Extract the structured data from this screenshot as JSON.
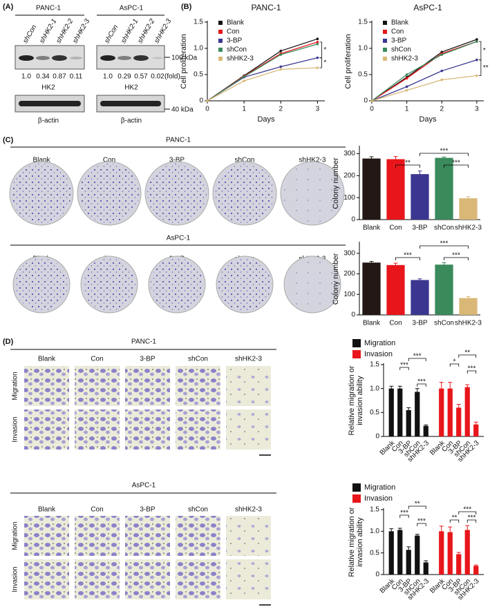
{
  "panel_labels": [
    "(A)",
    "(B)",
    "(C)",
    "(D)"
  ],
  "blots": [
    {
      "cell_line": "PANC-1",
      "lanes": [
        "shCon",
        "shHK2-1",
        "shHK2-2",
        "shHK2-3"
      ],
      "fold": [
        "1.0",
        "0.34",
        "0.87",
        "0.11"
      ],
      "protein": "HK2",
      "control": "β-actin"
    },
    {
      "cell_line": "AsPC-1",
      "lanes": [
        "shCon",
        "shHK2-1",
        "shHK2-2",
        "shHK2-3"
      ],
      "fold": [
        "1.0",
        "0.29",
        "0.57",
        "0.02"
      ],
      "protein": "HK2",
      "control": "β-actin"
    }
  ],
  "blot_units": {
    "fold": "(fold)",
    "marker_high": "100 kDa",
    "marker_low": "40 kDa"
  },
  "colony_plates": [
    {
      "cell_line": "PANC-1",
      "groups": [
        "Blank",
        "Con",
        "3-BP",
        "shCon",
        "shHK2-3"
      ]
    },
    {
      "cell_line": "AsPC-1",
      "groups": [
        "Blank",
        "Con",
        "3-BP",
        "shCon",
        "shHK2-3"
      ]
    }
  ],
  "transwell": [
    {
      "cell_line": "PANC-1",
      "groups": [
        "Blank",
        "Con",
        "3-BP",
        "shCon",
        "shHK2-3"
      ],
      "rows": [
        "Migration",
        "Invasion"
      ]
    },
    {
      "cell_line": "AsPC-1",
      "groups": [
        "Blank",
        "Con",
        "3-BP",
        "shCon",
        "shHK2-3"
      ],
      "rows": [
        "Migration",
        "Invasion"
      ]
    }
  ],
  "chart_data": [
    {
      "type": "line",
      "title": "PANC-1",
      "x_label": "Days",
      "y_label": "Cell proliferation",
      "x": [
        0,
        1,
        2,
        3
      ],
      "xlim": [
        0,
        3.2
      ],
      "xticks": [
        0,
        1,
        2,
        3
      ],
      "ylim": [
        0,
        1.5
      ],
      "yticks": [
        0,
        0.5,
        {
          "value": 1,
          "label": "1.0"
        },
        1.5
      ],
      "series": [
        {
          "name": "Blank",
          "color": "#111111",
          "values": [
            0,
            0.48,
            0.95,
            1.18
          ]
        },
        {
          "name": "Con",
          "color": "#e8161b",
          "values": [
            0,
            0.47,
            0.9,
            1.12
          ]
        },
        {
          "name": "3-BP",
          "color": "#3b3790",
          "values": [
            0,
            0.45,
            0.65,
            0.82
          ]
        },
        {
          "name": "shCon",
          "color": "#3a8a5c",
          "values": [
            0,
            0.46,
            0.88,
            1.08
          ]
        },
        {
          "name": "shHK2-3",
          "color": "#d9b877",
          "values": [
            0,
            0.38,
            0.6,
            0.63
          ]
        }
      ],
      "annotations": [
        "*",
        "*"
      ]
    },
    {
      "type": "line",
      "title": "AsPC-1",
      "x_label": "Days",
      "y_label": "Cell proliferation",
      "x": [
        0,
        1,
        2,
        3
      ],
      "xlim": [
        0,
        3.2
      ],
      "xticks": [
        0,
        1,
        2,
        3
      ],
      "ylim": [
        0,
        1.5
      ],
      "yticks": [
        0,
        0.5,
        {
          "value": 1,
          "label": "1.0"
        },
        1.5
      ],
      "series": [
        {
          "name": "Blank",
          "color": "#111111",
          "values": [
            0,
            0.45,
            0.93,
            1.17
          ]
        },
        {
          "name": "Con",
          "color": "#e8161b",
          "values": [
            0,
            0.43,
            0.9,
            1.13
          ]
        },
        {
          "name": "3-BP",
          "color": "#3b3790",
          "values": [
            0,
            0.27,
            0.57,
            0.78
          ]
        },
        {
          "name": "shCon",
          "color": "#3a8a5c",
          "values": [
            0,
            0.5,
            0.88,
            1.13
          ]
        },
        {
          "name": "shHK2-3",
          "color": "#d9b877",
          "values": [
            0,
            0.2,
            0.4,
            0.48
          ]
        }
      ],
      "annotations": [
        "*",
        "**"
      ]
    },
    {
      "type": "bar",
      "y_label": "Colony number",
      "categories": [
        "Blank",
        "Con",
        "3-BP",
        "shCon",
        "shHK2-3"
      ],
      "values": [
        278,
        275,
        207,
        281,
        97
      ],
      "errors": [
        8,
        12,
        14,
        4,
        7
      ],
      "colors": [
        "#231815",
        "#e8161b",
        "#3b3790",
        "#3a8a5c",
        "#d9b877"
      ],
      "ylim": [
        0,
        330
      ],
      "yticks": [
        0,
        100,
        200,
        300
      ],
      "annotations": [
        "**",
        "***",
        "***"
      ]
    },
    {
      "type": "bar",
      "y_label": "Colony number",
      "categories": [
        "Blank",
        "Con",
        "3-BP",
        "shCon",
        "shHK2-3"
      ],
      "values": [
        255,
        243,
        170,
        245,
        82
      ],
      "errors": [
        6,
        9,
        6,
        9,
        7
      ],
      "colors": [
        "#231815",
        "#e8161b",
        "#3b3790",
        "#3a8a5c",
        "#d9b877"
      ],
      "ylim": [
        0,
        350
      ],
      "yticks": [
        0,
        100,
        200,
        300
      ],
      "annotations": [
        "***",
        "***",
        "***"
      ]
    },
    {
      "type": "bar",
      "y_label": [
        "Relative migration or",
        "invasion ability"
      ],
      "categories": [
        "Blank",
        "Con",
        "3-BP",
        "shCon",
        "shHK2-3"
      ],
      "ylim": [
        0,
        1.5
      ],
      "yticks": [
        0,
        0.5,
        {
          "value": 1,
          "label": "1.0"
        },
        1.5
      ],
      "series": [
        {
          "name": "Migration",
          "color": "#111111",
          "values": [
            1,
            1,
            0.55,
            0.93,
            0.22
          ],
          "errors": [
            0.05,
            0.05,
            0.05,
            0.07,
            0.02
          ]
        },
        {
          "name": "Invasion",
          "color": "#e8161b",
          "values": [
            1,
            1,
            0.6,
            1.03,
            0.25
          ],
          "errors": [
            0.13,
            0.13,
            0.07,
            0.05,
            0.05
          ]
        }
      ],
      "annotations": [
        "***",
        "***",
        "***",
        "*",
        "**",
        "***"
      ]
    },
    {
      "type": "bar",
      "y_label": [
        "Relative migration or",
        "invasion ability"
      ],
      "categories": [
        "Blank",
        "Con",
        "3-BP",
        "shCon",
        "shHK2-3"
      ],
      "ylim": [
        0,
        1.5
      ],
      "yticks": [
        0,
        0.5,
        {
          "value": 1,
          "label": "1.0"
        },
        1.5
      ],
      "series": [
        {
          "name": "Migration",
          "color": "#111111",
          "values": [
            1,
            1.03,
            0.57,
            0.9,
            0.28
          ],
          "errors": [
            0.06,
            0.04,
            0.07,
            0.03,
            0.04
          ]
        },
        {
          "name": "Invasion",
          "color": "#e8161b",
          "values": [
            1,
            0.98,
            0.47,
            1.03,
            0.2
          ],
          "errors": [
            0.12,
            0.12,
            0.04,
            0.1,
            0.02
          ]
        }
      ],
      "annotations": [
        "***",
        "**",
        "***",
        "**",
        "***",
        "***"
      ]
    }
  ]
}
